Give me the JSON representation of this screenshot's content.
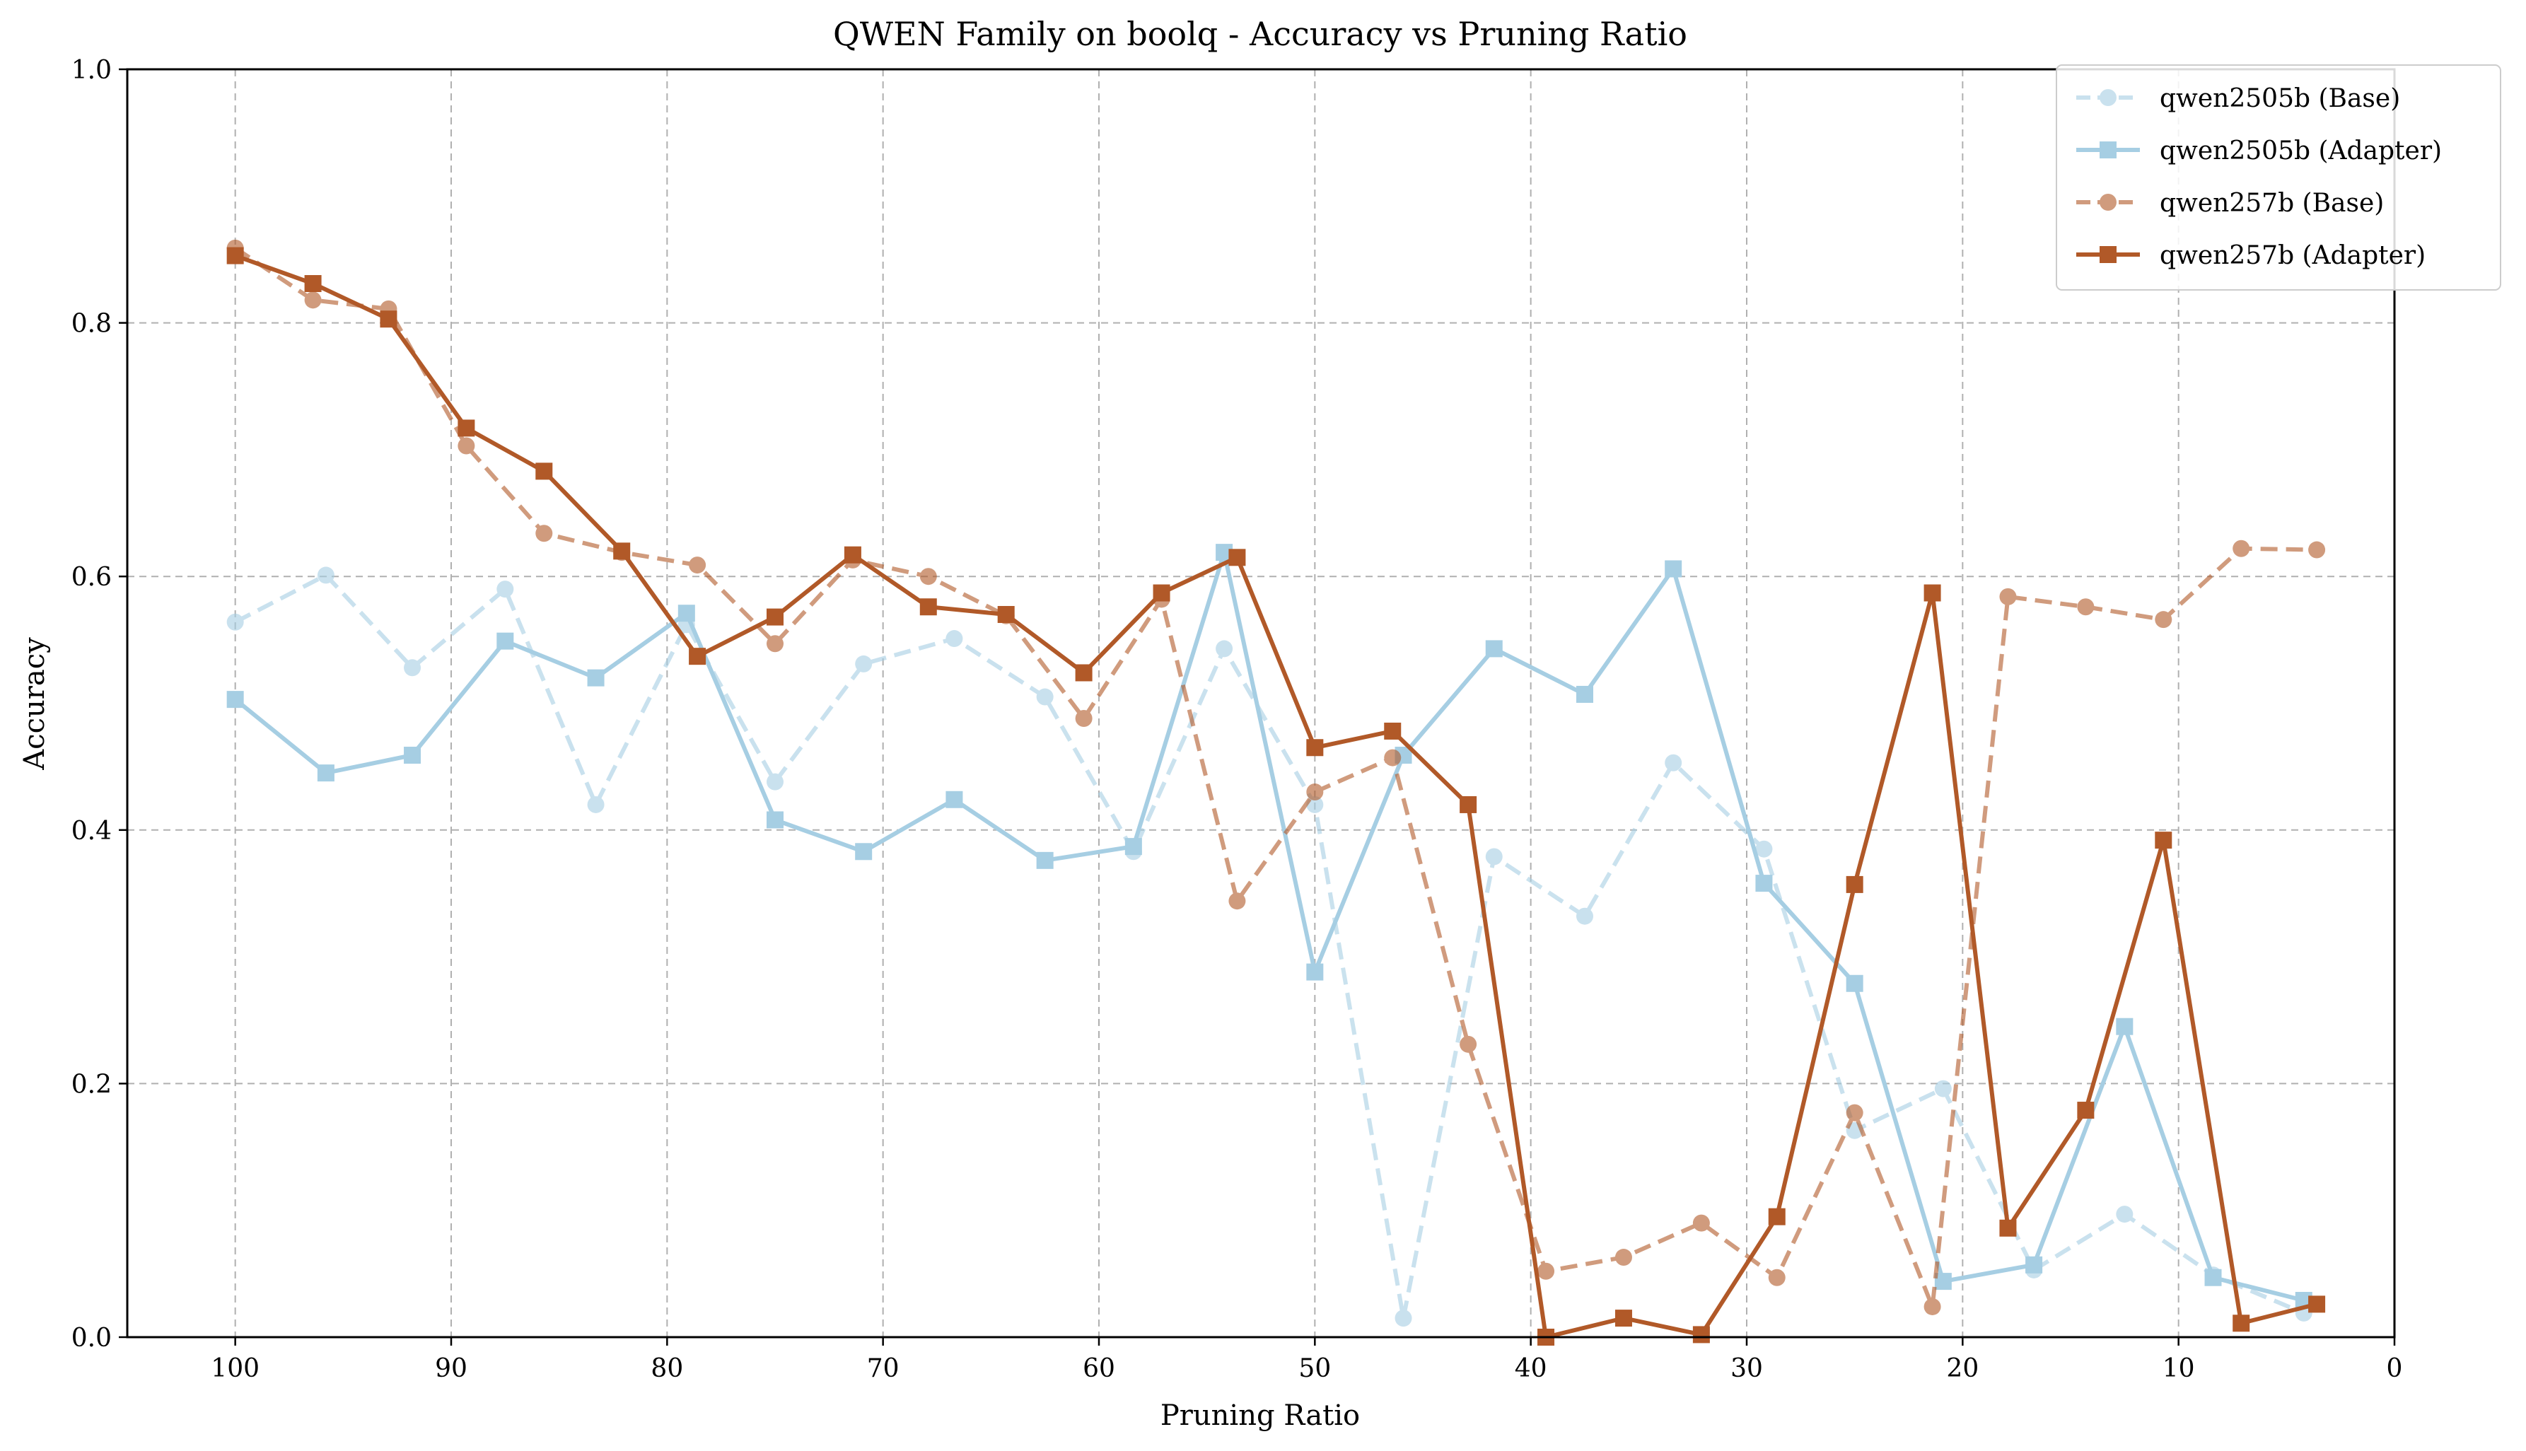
{
  "chart_data": {
    "type": "line",
    "title": "QWEN Family on boolq - Accuracy vs Pruning Ratio",
    "xlabel": "Pruning Ratio",
    "ylabel": "Accuracy",
    "xlim": [
      105,
      0
    ],
    "ylim": [
      0,
      1
    ],
    "x_reversed": true,
    "xticks": [
      "100",
      "90",
      "80",
      "70",
      "60",
      "50",
      "40",
      "30",
      "20",
      "10",
      "0"
    ],
    "yticks": [
      "0.0",
      "0.2",
      "0.4",
      "0.6",
      "0.8",
      "1.0"
    ],
    "grid": true,
    "legend_position": "top-right",
    "series": [
      {
        "name": "qwen2505b (Base)",
        "color": "#a6cee3",
        "style": "dashed",
        "marker": "circle",
        "opacity": 0.6,
        "x": [
          100,
          95.8,
          91.8,
          87.5,
          83.3,
          79.1,
          75.0,
          70.9,
          66.7,
          62.5,
          58.4,
          54.2,
          50.0,
          45.9,
          41.7,
          37.5,
          33.4,
          29.2,
          25.0,
          20.9,
          16.7,
          12.5,
          8.4,
          4.2
        ],
        "values": [
          0.564,
          0.601,
          0.528,
          0.59,
          0.42,
          0.562,
          0.438,
          0.531,
          0.551,
          0.505,
          0.383,
          0.543,
          0.42,
          0.015,
          0.379,
          0.332,
          0.453,
          0.385,
          0.163,
          0.196,
          0.053,
          0.097,
          0.049,
          0.019
        ]
      },
      {
        "name": "qwen2505b (Adapter)",
        "color": "#a6cee3",
        "style": "solid",
        "marker": "square",
        "opacity": 1,
        "x": [
          100,
          95.8,
          91.8,
          87.5,
          83.3,
          79.1,
          75.0,
          70.9,
          66.7,
          62.5,
          58.4,
          54.2,
          50.0,
          45.9,
          41.7,
          37.5,
          33.4,
          29.2,
          25.0,
          20.9,
          16.7,
          12.5,
          8.4,
          4.2
        ],
        "values": [
          0.503,
          0.445,
          0.459,
          0.549,
          0.52,
          0.571,
          0.408,
          0.383,
          0.424,
          0.376,
          0.387,
          0.619,
          0.288,
          0.459,
          0.543,
          0.507,
          0.606,
          0.358,
          0.279,
          0.044,
          0.057,
          0.245,
          0.047,
          0.029
        ]
      },
      {
        "name": "qwen257b (Base)",
        "color": "#b15928",
        "style": "dashed",
        "marker": "circle",
        "opacity": 0.6,
        "x": [
          100,
          96.4,
          92.9,
          89.3,
          85.7,
          82.1,
          78.6,
          75.0,
          71.4,
          67.9,
          64.3,
          60.7,
          57.1,
          53.6,
          50.0,
          46.4,
          42.9,
          39.3,
          35.7,
          32.1,
          28.6,
          25.0,
          21.4,
          17.9,
          14.3,
          10.7,
          7.1,
          3.6
        ],
        "values": [
          0.859,
          0.818,
          0.811,
          0.703,
          0.634,
          0.619,
          0.609,
          0.547,
          0.613,
          0.6,
          0.569,
          0.488,
          0.582,
          0.344,
          0.43,
          0.457,
          0.231,
          0.052,
          0.063,
          0.09,
          0.047,
          0.177,
          0.024,
          0.584,
          0.576,
          0.566,
          0.622,
          0.621
        ]
      },
      {
        "name": "qwen257b (Adapter)",
        "color": "#b15928",
        "style": "solid",
        "marker": "square",
        "opacity": 1,
        "x": [
          100,
          96.4,
          92.9,
          89.3,
          85.7,
          82.1,
          78.6,
          75.0,
          71.4,
          67.9,
          64.3,
          60.7,
          57.1,
          53.6,
          50.0,
          46.4,
          42.9,
          39.3,
          35.7,
          32.1,
          28.6,
          25.0,
          21.4,
          17.9,
          14.3,
          10.7,
          7.1,
          3.6
        ],
        "values": [
          0.853,
          0.831,
          0.803,
          0.717,
          0.683,
          0.62,
          0.537,
          0.568,
          0.617,
          0.576,
          0.57,
          0.524,
          0.587,
          0.615,
          0.465,
          0.478,
          0.42,
          0.0,
          0.015,
          0.002,
          0.095,
          0.357,
          0.587,
          0.086,
          0.179,
          0.392,
          0.011,
          0.026
        ]
      }
    ]
  }
}
